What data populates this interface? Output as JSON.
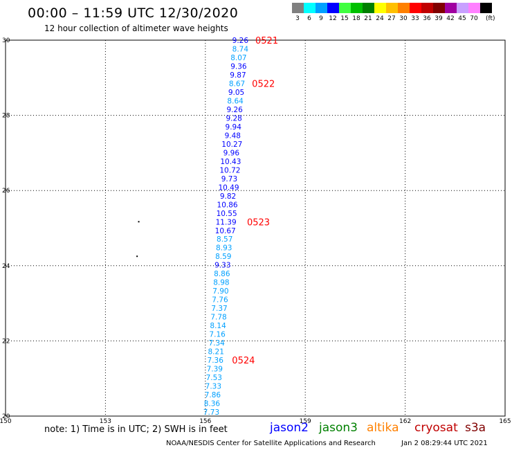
{
  "header": {
    "title": "00:00 – 11:59 UTC 12/30/2020",
    "subtitle": "12 hour collection of altimeter wave heights"
  },
  "legend": {
    "colors": [
      "#808080",
      "#00ffff",
      "#00a0ff",
      "#0000ff",
      "#40ff40",
      "#00c000",
      "#008000",
      "#ffff00",
      "#ffc000",
      "#ff8000",
      "#ff0000",
      "#c00000",
      "#800000",
      "#a000a0",
      "#c8a0ff",
      "#ff80ff",
      "#000000"
    ],
    "labels": [
      "3",
      "6",
      "9",
      "12",
      "15",
      "18",
      "21",
      "24",
      "27",
      "30",
      "33",
      "36",
      "39",
      "42",
      "45",
      "70",
      "(ft)"
    ]
  },
  "footer": {
    "note": "note: 1) Time is in UTC; 2) SWH is in feet",
    "satellites": [
      {
        "name": "jason2",
        "color": "#0000ff"
      },
      {
        "name": "jason3",
        "color": "#008000"
      },
      {
        "name": "altika",
        "color": "#ff8000"
      },
      {
        "name": "cryosat",
        "color": "#c00000"
      },
      {
        "name": "s3a",
        "color": "#800000"
      }
    ],
    "credit": "NOAA/NESDIS Center for Satellite Applications and Research",
    "timestamp": "Jan  2 08:29:44 UTC 2021"
  },
  "chart_data": {
    "type": "scatter",
    "title": "00:00 – 11:59 UTC 12/30/2020",
    "subtitle": "12 hour collection of altimeter wave heights",
    "xlim": [
      150,
      165
    ],
    "ylim": [
      20,
      30
    ],
    "xticks": [
      "150",
      "153",
      "156",
      "159",
      "162",
      "165"
    ],
    "yticks": [
      "20",
      "22",
      "24",
      "26",
      "28",
      "30"
    ],
    "grid": true,
    "series": [
      {
        "points": [
          {
            "x": 157.05,
            "y": 30.0,
            "v": "9.26",
            "c": "#0000ff"
          },
          {
            "x": 157.05,
            "y": 29.77,
            "v": "8.74",
            "c": "#00a0ff"
          },
          {
            "x": 157.0,
            "y": 29.54,
            "v": "8.07",
            "c": "#00a0ff"
          },
          {
            "x": 157.0,
            "y": 29.31,
            "v": "9.36",
            "c": "#0000ff"
          },
          {
            "x": 156.98,
            "y": 29.08,
            "v": "9.87",
            "c": "#0000ff"
          },
          {
            "x": 156.95,
            "y": 28.85,
            "v": "8.67",
            "c": "#00a0ff"
          },
          {
            "x": 156.93,
            "y": 28.62,
            "v": "9.05",
            "c": "#0000ff"
          },
          {
            "x": 156.9,
            "y": 28.39,
            "v": "8.64",
            "c": "#00a0ff"
          },
          {
            "x": 156.88,
            "y": 28.16,
            "v": "9.26",
            "c": "#0000ff"
          },
          {
            "x": 156.86,
            "y": 27.93,
            "v": "9.28",
            "c": "#0000ff"
          },
          {
            "x": 156.84,
            "y": 27.7,
            "v": "9.94",
            "c": "#0000ff"
          },
          {
            "x": 156.82,
            "y": 27.47,
            "v": "9.48",
            "c": "#0000ff"
          },
          {
            "x": 156.8,
            "y": 27.24,
            "v": "10.27",
            "c": "#0000ff"
          },
          {
            "x": 156.78,
            "y": 27.01,
            "v": "9.96",
            "c": "#0000ff"
          },
          {
            "x": 156.76,
            "y": 26.78,
            "v": "10.43",
            "c": "#0000ff"
          },
          {
            "x": 156.74,
            "y": 26.55,
            "v": "10.72",
            "c": "#0000ff"
          },
          {
            "x": 156.72,
            "y": 26.32,
            "v": "9.73",
            "c": "#0000ff"
          },
          {
            "x": 156.7,
            "y": 26.09,
            "v": "10.49",
            "c": "#0000ff"
          },
          {
            "x": 156.68,
            "y": 25.86,
            "v": "9.82",
            "c": "#0000ff"
          },
          {
            "x": 156.66,
            "y": 25.63,
            "v": "10.86",
            "c": "#0000ff"
          },
          {
            "x": 156.64,
            "y": 25.4,
            "v": "10.55",
            "c": "#0000ff"
          },
          {
            "x": 156.62,
            "y": 25.17,
            "v": "11.39",
            "c": "#0000ff"
          },
          {
            "x": 156.6,
            "y": 24.94,
            "v": "10.67",
            "c": "#0000ff"
          },
          {
            "x": 156.58,
            "y": 24.71,
            "v": "8.57",
            "c": "#00a0ff"
          },
          {
            "x": 156.56,
            "y": 24.48,
            "v": "8.93",
            "c": "#00a0ff"
          },
          {
            "x": 156.54,
            "y": 24.25,
            "v": "8.59",
            "c": "#00a0ff"
          },
          {
            "x": 156.52,
            "y": 24.02,
            "v": "9.33",
            "c": "#0000ff"
          },
          {
            "x": 156.5,
            "y": 23.79,
            "v": "8.86",
            "c": "#00a0ff"
          },
          {
            "x": 156.48,
            "y": 23.56,
            "v": "8.98",
            "c": "#00a0ff"
          },
          {
            "x": 156.46,
            "y": 23.33,
            "v": "7.90",
            "c": "#00a0ff"
          },
          {
            "x": 156.44,
            "y": 23.1,
            "v": "7.76",
            "c": "#00a0ff"
          },
          {
            "x": 156.42,
            "y": 22.87,
            "v": "7.37",
            "c": "#00a0ff"
          },
          {
            "x": 156.4,
            "y": 22.64,
            "v": "7.78",
            "c": "#00a0ff"
          },
          {
            "x": 156.38,
            "y": 22.41,
            "v": "8.14",
            "c": "#00a0ff"
          },
          {
            "x": 156.36,
            "y": 22.18,
            "v": "7.16",
            "c": "#00a0ff"
          },
          {
            "x": 156.34,
            "y": 21.95,
            "v": "7.34",
            "c": "#00a0ff"
          },
          {
            "x": 156.32,
            "y": 21.72,
            "v": "8.21",
            "c": "#00a0ff"
          },
          {
            "x": 156.3,
            "y": 21.49,
            "v": "7.36",
            "c": "#00a0ff"
          },
          {
            "x": 156.28,
            "y": 21.26,
            "v": "7.39",
            "c": "#00a0ff"
          },
          {
            "x": 156.26,
            "y": 21.03,
            "v": "7.53",
            "c": "#00a0ff"
          },
          {
            "x": 156.24,
            "y": 20.8,
            "v": "7.33",
            "c": "#00a0ff"
          },
          {
            "x": 156.22,
            "y": 20.57,
            "v": "7.86",
            "c": "#00a0ff"
          },
          {
            "x": 156.2,
            "y": 20.34,
            "v": "8.36",
            "c": "#00a0ff"
          },
          {
            "x": 156.18,
            "y": 20.11,
            "v": "7.73",
            "c": "#00a0ff"
          }
        ]
      }
    ],
    "time_labels": [
      {
        "text": "0521",
        "x": 157.5,
        "y": 30.0
      },
      {
        "text": "0522",
        "x": 157.4,
        "y": 28.85
      },
      {
        "text": "0523",
        "x": 157.25,
        "y": 25.17
      },
      {
        "text": "0524",
        "x": 156.8,
        "y": 21.49
      }
    ],
    "island_points": [
      {
        "x": 154.0,
        "y": 25.17
      },
      {
        "x": 153.95,
        "y": 24.25
      }
    ]
  }
}
